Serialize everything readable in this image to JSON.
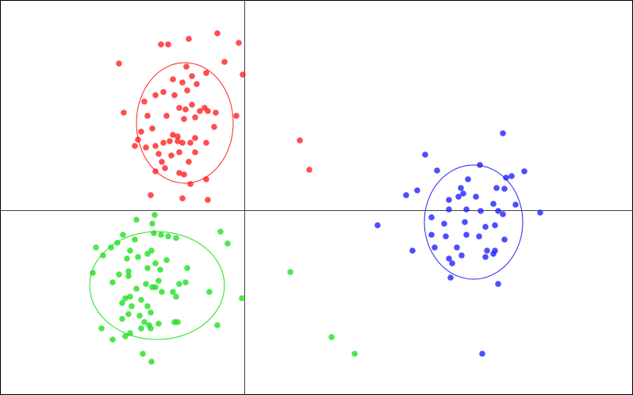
{
  "chart_data": {
    "type": "scatter",
    "xlim": [
      -308,
      490
    ],
    "ylim": [
      -233,
      265
    ],
    "grid": false,
    "axes_lines": "cross at origin",
    "legend": "none",
    "series": [
      {
        "color": "#ff2020",
        "points": [
          [
            -105,
            209
          ],
          [
            -96,
            209
          ],
          [
            -70,
            216
          ],
          [
            -34,
            223
          ],
          [
            -7,
            211
          ],
          [
            -158,
            185
          ],
          [
            -73,
            181
          ],
          [
            -25,
            187
          ],
          [
            -2,
            171
          ],
          [
            -48,
            173
          ],
          [
            -66,
            169
          ],
          [
            -90,
            165
          ],
          [
            -78,
            161
          ],
          [
            -60,
            159
          ],
          [
            -72,
            151
          ],
          [
            -102,
            149
          ],
          [
            -112,
            145
          ],
          [
            -88,
            145
          ],
          [
            -126,
            137
          ],
          [
            -66,
            133
          ],
          [
            -50,
            129
          ],
          [
            -82,
            129
          ],
          [
            -74,
            127
          ],
          [
            -46,
            125
          ],
          [
            -56,
            125
          ],
          [
            -36,
            123
          ],
          [
            -152,
            123
          ],
          [
            -122,
            119
          ],
          [
            -10,
            119
          ],
          [
            -98,
            119
          ],
          [
            -62,
            117
          ],
          [
            -76,
            115
          ],
          [
            -38,
            105
          ],
          [
            -116,
            103
          ],
          [
            -130,
            99
          ],
          [
            -90,
            95
          ],
          [
            -84,
            93
          ],
          [
            -62,
            91
          ],
          [
            -134,
            89
          ],
          [
            -94,
            87
          ],
          [
            -78,
            85
          ],
          [
            -68,
            85
          ],
          [
            -48,
            85
          ],
          [
            -84,
            87
          ],
          [
            -102,
            85
          ],
          [
            -112,
            81
          ],
          [
            -138,
            81
          ],
          [
            -124,
            79
          ],
          [
            -108,
            71
          ],
          [
            -82,
            73
          ],
          [
            -62,
            73
          ],
          [
            -92,
            69
          ],
          [
            -104,
            61
          ],
          [
            -70,
            61
          ],
          [
            -100,
            53
          ],
          [
            -112,
            49
          ],
          [
            -82,
            47
          ],
          [
            -76,
            45
          ],
          [
            -48,
            39
          ],
          [
            -68,
            33
          ],
          [
            -118,
            19
          ],
          [
            -46,
            13
          ],
          [
            -78,
            15
          ],
          [
            70,
            88
          ],
          [
            82,
            51
          ]
        ],
        "ellipse": {
          "center": [
            -75,
            110
          ],
          "rx": 61,
          "ry": 76
        }
      },
      {
        "color": "#20e020",
        "points": [
          [
            -113,
            -6
          ],
          [
            -136,
            -12
          ],
          [
            -116,
            -17
          ],
          [
            -114,
            -29
          ],
          [
            -153,
            -31
          ],
          [
            -138,
            -37
          ],
          [
            -105,
            -31
          ],
          [
            -96,
            -33
          ],
          [
            -86,
            -35
          ],
          [
            -160,
            -41
          ],
          [
            -168,
            -47
          ],
          [
            -30,
            -27
          ],
          [
            -21,
            -42
          ],
          [
            -187,
            -47
          ],
          [
            -144,
            -51
          ],
          [
            -117,
            -51
          ],
          [
            -122,
            -55
          ],
          [
            -178,
            -57
          ],
          [
            -98,
            -63
          ],
          [
            -134,
            -59
          ],
          [
            -148,
            -61
          ],
          [
            -112,
            -67
          ],
          [
            -122,
            -73
          ],
          [
            -146,
            -77
          ],
          [
            -106,
            -75
          ],
          [
            -72,
            -73
          ],
          [
            58,
            -78
          ],
          [
            -191,
            -79
          ],
          [
            -158,
            -81
          ],
          [
            -146,
            -83
          ],
          [
            -166,
            -91
          ],
          [
            -124,
            -93
          ],
          [
            -108,
            -89
          ],
          [
            -112,
            -97
          ],
          [
            -116,
            -97
          ],
          [
            -82,
            -93
          ],
          [
            -74,
            -91
          ],
          [
            -136,
            -99
          ],
          [
            -104,
            -103
          ],
          [
            -90,
            -103
          ],
          [
            -86,
            -109
          ],
          [
            -44,
            -103
          ],
          [
            -144,
            -109
          ],
          [
            -150,
            -111
          ],
          [
            -130,
            -113
          ],
          [
            -142,
            -121
          ],
          [
            -154,
            -117
          ],
          [
            -122,
            -121
          ],
          [
            -118,
            -129
          ],
          [
            -146,
            -131
          ],
          [
            -132,
            -133
          ],
          [
            -154,
            -137
          ],
          [
            -126,
            -141
          ],
          [
            -108,
            -143
          ],
          [
            -120,
            -145
          ],
          [
            -88,
            -141
          ],
          [
            -84,
            -141
          ],
          [
            -34,
            -145
          ],
          [
            -130,
            -149
          ],
          [
            -118,
            -149
          ],
          [
            -180,
            -149
          ],
          [
            -144,
            -155
          ],
          [
            -150,
            -159
          ],
          [
            -166,
            -163
          ],
          [
            -128,
            -181
          ],
          [
            -117,
            -191
          ],
          [
            -3,
            -111
          ],
          [
            110,
            -160
          ],
          [
            139,
            -181
          ]
        ],
        "ellipse": {
          "center": [
            -110,
            -95
          ],
          "rx": 85,
          "ry": 68
        }
      },
      {
        "color": "#2020ff",
        "points": [
          [
            326,
            97
          ],
          [
            228,
            70
          ],
          [
            297,
            57
          ],
          [
            243,
            50
          ],
          [
            353,
            49
          ],
          [
            337,
            43
          ],
          [
            330,
            41
          ],
          [
            282,
            39
          ],
          [
            273,
            28
          ],
          [
            318,
            28
          ],
          [
            328,
            27
          ],
          [
            204,
            19
          ],
          [
            218,
            25
          ],
          [
            270,
            17
          ],
          [
            276,
            21
          ],
          [
            292,
            17
          ],
          [
            258,
            13
          ],
          [
            314,
            8
          ],
          [
            342,
            7
          ],
          [
            320,
            -1
          ],
          [
            373,
            -3
          ],
          [
            236,
            -9
          ],
          [
            258,
            1
          ],
          [
            280,
            1
          ],
          [
            298,
            -1
          ],
          [
            326,
            -5
          ],
          [
            168,
            -19
          ],
          [
            252,
            -17
          ],
          [
            278,
            -15
          ],
          [
            304,
            -21
          ],
          [
            316,
            -19
          ],
          [
            254,
            -33
          ],
          [
            296,
            -33
          ],
          [
            236,
            -31
          ],
          [
            280,
            -31
          ],
          [
            328,
            -37
          ],
          [
            268,
            -47
          ],
          [
            240,
            -47
          ],
          [
            212,
            -51
          ],
          [
            306,
            -51
          ],
          [
            316,
            -51
          ],
          [
            314,
            -55
          ],
          [
            258,
            -61
          ],
          [
            274,
            -57
          ],
          [
            262,
            -67
          ],
          [
            304,
            -59
          ],
          [
            260,
            -85
          ],
          [
            320,
            -93
          ],
          [
            300,
            -181
          ]
        ],
        "ellipse": {
          "center": [
            289,
            -15
          ],
          "rx": 62,
          "ry": 72
        }
      }
    ]
  }
}
